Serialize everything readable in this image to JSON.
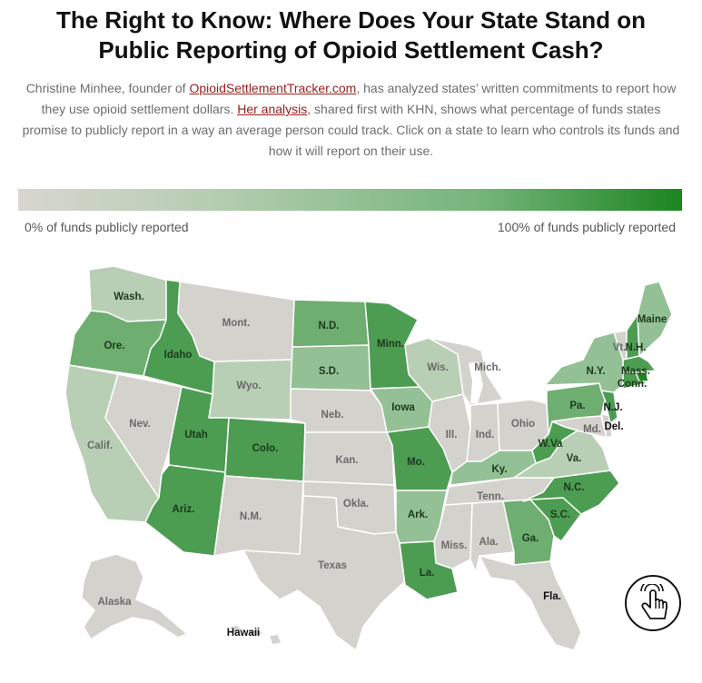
{
  "title": "The Right to Know: Where Does Your State Stand on Public Reporting of Opioid Settlement Cash?",
  "intro": {
    "p1": "Christine Minhee, founder of ",
    "link1": "OpioidSettlementTracker.com",
    "p2": ", has analyzed states’ written commitments to report how they use opioid settlement dollars. ",
    "link2": "Her analysis",
    "p3": ", shared first with KHN, shows what percentage of funds states promise to publicly report in a way an average person could track. Click on a state to learn who controls its funds and how it will report on their use."
  },
  "legend": {
    "min_label": "0% of funds publicly reported",
    "max_label": "100% of funds publicly reported",
    "min_color": "#d8d6d0",
    "max_color": "#1c851f"
  },
  "states": {
    "wash": "Wash.",
    "ore": "Ore.",
    "calif": "Calif.",
    "idaho": "Idaho",
    "nev": "Nev.",
    "mont": "Mont.",
    "wyo": "Wyo.",
    "utah": "Utah",
    "ariz": "Ariz.",
    "colo": "Colo.",
    "nm": "N.M.",
    "nd": "N.D.",
    "sd": "S.D.",
    "neb": "Neb.",
    "kan": "Kan.",
    "okla": "Okla.",
    "texas": "Texas",
    "minn": "Minn.",
    "iowa": "Iowa",
    "mo": "Mo.",
    "ark": "Ark.",
    "la": "La.",
    "wis": "Wis.",
    "ill": "Ill.",
    "mich": "Mich.",
    "ind": "Ind.",
    "ohio": "Ohio",
    "ky": "Ky.",
    "tenn": "Tenn.",
    "miss": "Miss.",
    "ala": "Ala.",
    "ga": "Ga.",
    "fla": "Fla.",
    "sc": "S.C.",
    "nc": "N.C.",
    "va": "Va.",
    "wva": "W.Va",
    "pa": "Pa.",
    "ny": "N.Y.",
    "vt": "Vt.",
    "nh": "N.H.",
    "maine": "Maine",
    "mass": "Mass.",
    "conn": "Conn.",
    "nj": "N.J.",
    "md": "Md.",
    "del": "Del.",
    "alaska": "Alaska",
    "hawaii": "Hawaii"
  },
  "colors": {
    "grey": "#d4d2cd",
    "pale": "#b9cfb5",
    "light": "#93c094",
    "mid": "#6eae70",
    "strong": "#4c9c52",
    "darkest": "#1c851f"
  }
}
